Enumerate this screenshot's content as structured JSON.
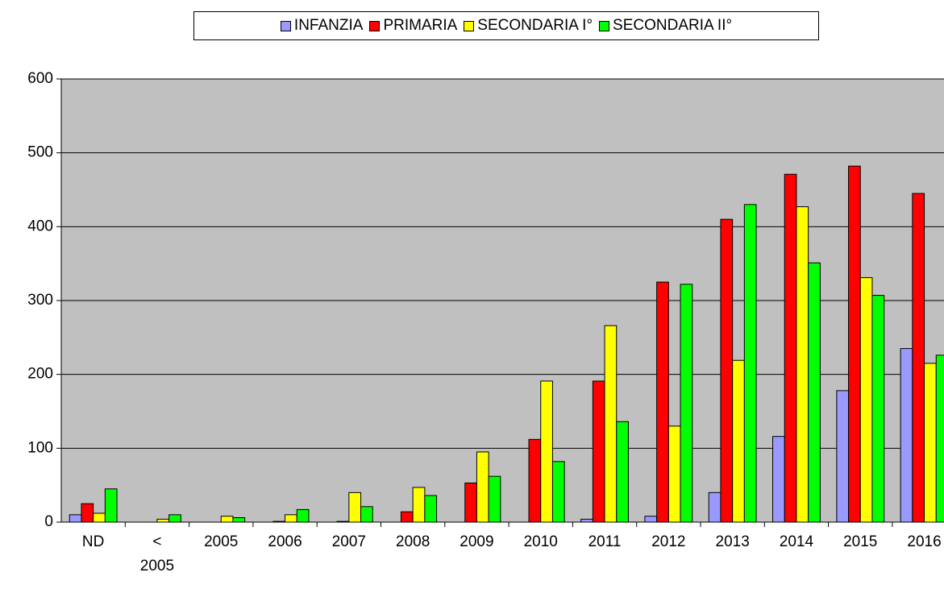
{
  "chart_data": {
    "type": "bar",
    "categories": [
      "ND",
      "< 2005",
      "2005",
      "2006",
      "2007",
      "2008",
      "2009",
      "2010",
      "2011",
      "2012",
      "2013",
      "2014",
      "2015",
      "2016"
    ],
    "series": [
      {
        "name": "INFANZIA",
        "color": "#9999ff",
        "values": [
          10,
          0,
          0,
          0,
          0,
          0,
          0,
          0,
          4,
          8,
          40,
          116,
          178,
          235
        ]
      },
      {
        "name": "PRIMARIA",
        "color": "#ff0000",
        "values": [
          25,
          0,
          0,
          1,
          1,
          14,
          53,
          112,
          191,
          325,
          410,
          471,
          482,
          445
        ]
      },
      {
        "name": "SECONDARIA I°",
        "color": "#ffff00",
        "values": [
          12,
          4,
          8,
          10,
          40,
          47,
          95,
          191,
          266,
          130,
          219,
          427,
          331,
          215
        ]
      },
      {
        "name": "SECONDARIA II°",
        "color": "#00ff00",
        "values": [
          45,
          10,
          6,
          17,
          21,
          36,
          62,
          82,
          136,
          322,
          430,
          351,
          307,
          226
        ]
      }
    ],
    "ylim": [
      0,
      600
    ],
    "yticks": [
      0,
      100,
      200,
      300,
      400,
      500,
      600
    ],
    "grid": true,
    "legend": "top"
  }
}
